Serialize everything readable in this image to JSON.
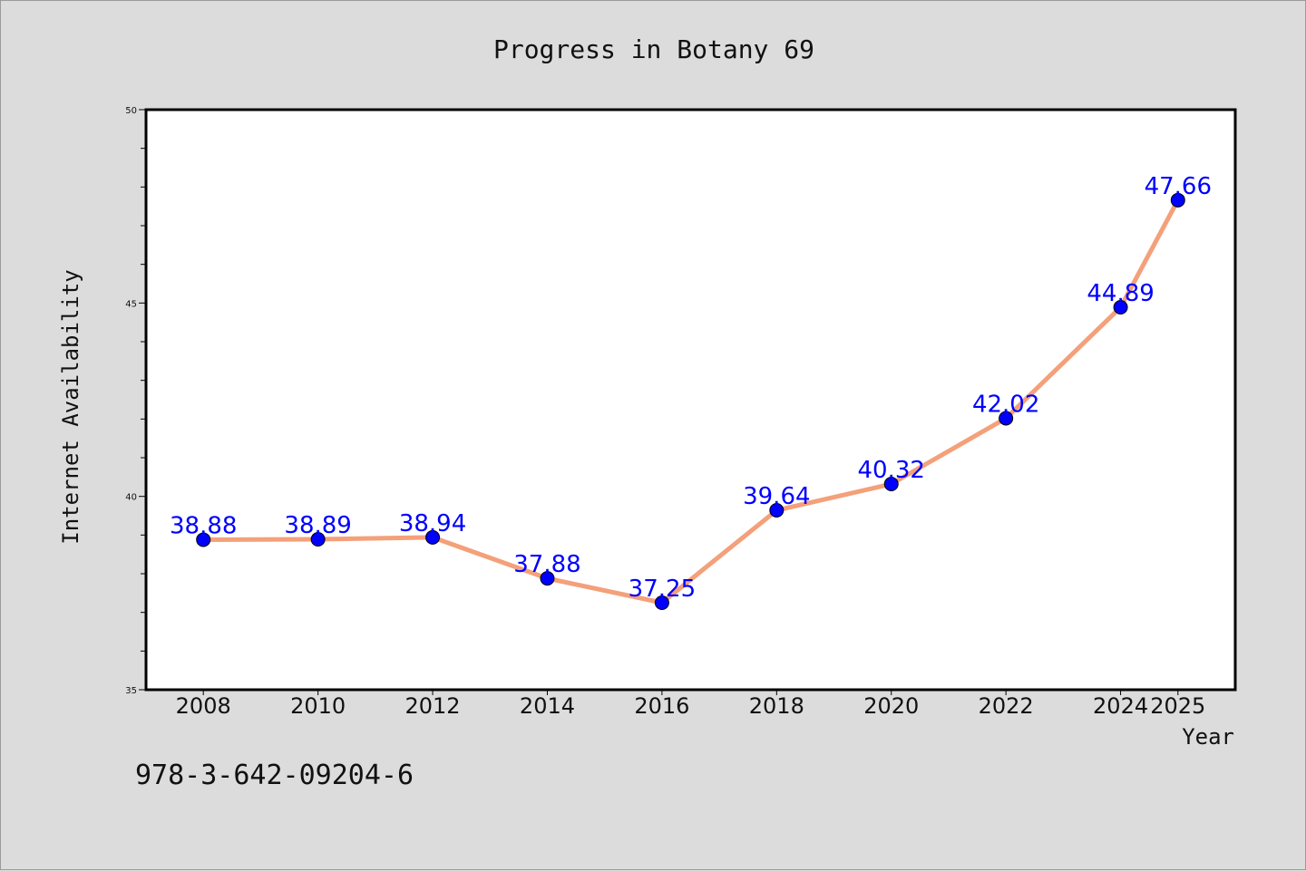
{
  "chart_data": {
    "type": "line",
    "title": "Progress in Botany 69",
    "xlabel": "Year",
    "ylabel": "Internet Availability",
    "x": [
      "2008",
      "2010",
      "2012",
      "2014",
      "2016",
      "2018",
      "2020",
      "2022",
      "2024",
      "2025"
    ],
    "values": [
      38.88,
      38.89,
      38.94,
      37.88,
      37.25,
      39.64,
      40.32,
      42.02,
      44.89,
      47.66
    ],
    "data_labels": [
      "38.88",
      "38.89",
      "38.94",
      "37.88",
      "37.25",
      "39.64",
      "40.32",
      "42.02",
      "44.89",
      "47.66"
    ],
    "ylim": [
      35,
      50
    ],
    "yticks": [
      "35",
      "40",
      "45",
      "50"
    ],
    "grid": false,
    "line_color": "#f4a07a",
    "marker_color": "#0000ff",
    "label_color": "#0000ff"
  },
  "footer": "978-3-642-09204-6"
}
